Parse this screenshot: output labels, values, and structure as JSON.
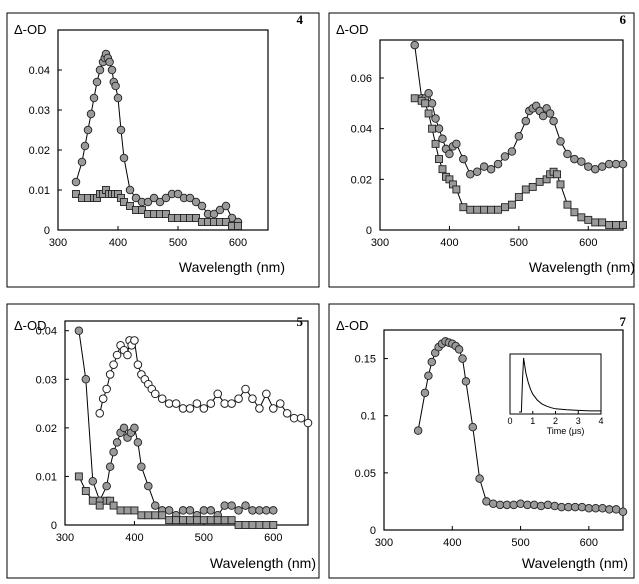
{
  "chart_data": [
    {
      "panel": "4",
      "type": "scatter",
      "ylabel": "Δ-OD",
      "xlabel": "Wavelength (nm)",
      "xlim": [
        300,
        650
      ],
      "ylim": [
        0,
        0.05
      ],
      "xticks": [
        "300",
        "400",
        "500",
        "600"
      ],
      "yticks": [
        "0",
        "0.01",
        "0.02",
        "0.03",
        "0.04"
      ],
      "series": [
        {
          "marker": "circle-gray",
          "x": [
            330,
            340,
            345,
            350,
            355,
            360,
            365,
            370,
            375,
            378,
            380,
            383,
            386,
            390,
            393,
            396,
            400,
            405,
            410,
            420,
            430,
            440,
            450,
            460,
            470,
            480,
            490,
            500,
            510,
            520,
            530,
            540,
            550,
            560,
            570,
            580,
            590,
            600
          ],
          "y": [
            0.012,
            0.017,
            0.021,
            0.025,
            0.029,
            0.033,
            0.037,
            0.04,
            0.042,
            0.043,
            0.044,
            0.043,
            0.042,
            0.04,
            0.037,
            0.036,
            0.033,
            0.025,
            0.018,
            0.01,
            0.008,
            0.007,
            0.007,
            0.008,
            0.007,
            0.008,
            0.009,
            0.009,
            0.008,
            0.008,
            0.007,
            0.006,
            0.004,
            0.004,
            0.005,
            0.006,
            0.003,
            0.002
          ]
        },
        {
          "marker": "square-gray",
          "x": [
            330,
            340,
            350,
            360,
            365,
            370,
            375,
            380,
            385,
            390,
            395,
            400,
            405,
            410,
            420,
            430,
            440,
            450,
            460,
            470,
            480,
            490,
            500,
            510,
            520,
            530,
            540,
            550,
            560,
            570,
            580,
            590,
            600
          ],
          "y": [
            0.009,
            0.008,
            0.008,
            0.008,
            0.008,
            0.009,
            0.009,
            0.01,
            0.009,
            0.009,
            0.009,
            0.009,
            0.008,
            0.007,
            0.006,
            0.005,
            0.005,
            0.004,
            0.004,
            0.004,
            0.004,
            0.003,
            0.003,
            0.003,
            0.003,
            0.003,
            0.002,
            0.002,
            0.002,
            0.002,
            0.002,
            0.001,
            0.001
          ]
        }
      ]
    },
    {
      "panel": "6",
      "type": "scatter",
      "ylabel": "Δ-OD",
      "xlabel": "Wavelength (nm)",
      "xlim": [
        300,
        650
      ],
      "ylim": [
        0,
        0.075
      ],
      "xticks": [
        "300",
        "400",
        "500",
        "600"
      ],
      "yticks": [
        "0",
        "0.02",
        "0.04",
        "0.06"
      ],
      "series": [
        {
          "marker": "circle-gray",
          "x": [
            350,
            360,
            365,
            370,
            375,
            380,
            385,
            390,
            395,
            400,
            405,
            410,
            420,
            430,
            440,
            450,
            460,
            470,
            480,
            490,
            500,
            510,
            515,
            520,
            525,
            530,
            535,
            540,
            545,
            550,
            560,
            570,
            580,
            590,
            600,
            610,
            620,
            630,
            640,
            650
          ],
          "y": [
            0.073,
            0.052,
            0.052,
            0.054,
            0.05,
            0.044,
            0.04,
            0.036,
            0.032,
            0.03,
            0.033,
            0.034,
            0.028,
            0.022,
            0.023,
            0.025,
            0.024,
            0.026,
            0.029,
            0.031,
            0.037,
            0.043,
            0.047,
            0.048,
            0.049,
            0.047,
            0.045,
            0.048,
            0.046,
            0.043,
            0.035,
            0.03,
            0.028,
            0.027,
            0.025,
            0.024,
            0.025,
            0.026,
            0.026,
            0.026
          ]
        },
        {
          "marker": "square-gray",
          "x": [
            350,
            360,
            365,
            370,
            375,
            380,
            385,
            390,
            395,
            400,
            405,
            410,
            420,
            430,
            440,
            450,
            460,
            470,
            480,
            490,
            500,
            510,
            520,
            530,
            540,
            545,
            550,
            555,
            560,
            570,
            580,
            590,
            600,
            610,
            620,
            630,
            640,
            650
          ],
          "y": [
            0.052,
            0.051,
            0.05,
            0.046,
            0.04,
            0.034,
            0.028,
            0.024,
            0.021,
            0.02,
            0.018,
            0.016,
            0.009,
            0.008,
            0.008,
            0.008,
            0.008,
            0.008,
            0.009,
            0.01,
            0.013,
            0.016,
            0.017,
            0.019,
            0.02,
            0.022,
            0.023,
            0.022,
            0.018,
            0.01,
            0.007,
            0.005,
            0.004,
            0.003,
            0.003,
            0.002,
            0.002,
            0.002
          ]
        }
      ]
    },
    {
      "panel": "5",
      "type": "scatter",
      "ylabel": "Δ-OD",
      "xlabel": "Wavelength (nm)",
      "xlim": [
        300,
        650
      ],
      "ylim": [
        0,
        0.042
      ],
      "xticks": [
        "300",
        "400",
        "500",
        "600"
      ],
      "yticks": [
        "0",
        "0.01",
        "0.02",
        "0.03",
        "0.04"
      ],
      "series": [
        {
          "marker": "circle-open",
          "x": [
            350,
            355,
            360,
            365,
            370,
            375,
            380,
            385,
            390,
            393,
            396,
            400,
            405,
            410,
            415,
            420,
            425,
            430,
            440,
            450,
            460,
            470,
            480,
            490,
            500,
            510,
            520,
            530,
            540,
            550,
            560,
            570,
            580,
            590,
            600,
            610,
            620,
            630,
            640,
            650
          ],
          "y": [
            0.023,
            0.026,
            0.028,
            0.031,
            0.033,
            0.035,
            0.037,
            0.036,
            0.035,
            0.038,
            0.037,
            0.038,
            0.033,
            0.031,
            0.03,
            0.029,
            0.028,
            0.027,
            0.026,
            0.025,
            0.025,
            0.024,
            0.024,
            0.025,
            0.024,
            0.025,
            0.027,
            0.025,
            0.025,
            0.026,
            0.028,
            0.026,
            0.024,
            0.027,
            0.024,
            0.025,
            0.023,
            0.022,
            0.022,
            0.021
          ]
        },
        {
          "marker": "circle-gray",
          "x": [
            320,
            330,
            340,
            350,
            360,
            365,
            370,
            375,
            380,
            385,
            390,
            395,
            400,
            405,
            410,
            420,
            430,
            440,
            450,
            460,
            470,
            480,
            490,
            500,
            510,
            520,
            530,
            540,
            550,
            560,
            570,
            580,
            590,
            600
          ],
          "y": [
            0.04,
            0.03,
            0.009,
            0.005,
            0.008,
            0.012,
            0.015,
            0.017,
            0.019,
            0.02,
            0.018,
            0.019,
            0.02,
            0.017,
            0.012,
            0.008,
            0.004,
            0.003,
            0.003,
            0.002,
            0.003,
            0.003,
            0.002,
            0.003,
            0.003,
            0.002,
            0.004,
            0.004,
            0.003,
            0.004,
            0.003,
            0.003,
            0.003,
            0.003
          ]
        },
        {
          "marker": "square-gray",
          "x": [
            320,
            330,
            340,
            350,
            360,
            365,
            370,
            380,
            390,
            400,
            410,
            420,
            430,
            440,
            450,
            460,
            470,
            480,
            490,
            500,
            510,
            520,
            530,
            540,
            550,
            560,
            570,
            580,
            590,
            600
          ],
          "y": [
            0.01,
            0.007,
            0.005,
            0.004,
            0.005,
            0.005,
            0.004,
            0.003,
            0.003,
            0.003,
            0.002,
            0.002,
            0.002,
            0.002,
            0.001,
            0.001,
            0.001,
            0.001,
            0.001,
            0.001,
            0.001,
            0.001,
            0.001,
            0.001,
            0.0,
            0.0,
            0.0,
            0.0,
            0.0,
            0.0
          ]
        }
      ]
    },
    {
      "panel": "7",
      "type": "scatter",
      "ylabel": "Δ-OD",
      "xlabel": "Wavelength (nm)",
      "xlim": [
        300,
        650
      ],
      "ylim": [
        0,
        0.175
      ],
      "xticks": [
        "300",
        "400",
        "500",
        "600"
      ],
      "yticks": [
        "0",
        "0.05",
        "0.1",
        "0.15"
      ],
      "series": [
        {
          "marker": "circle-gray",
          "x": [
            350,
            360,
            365,
            370,
            375,
            380,
            385,
            390,
            395,
            400,
            405,
            410,
            415,
            420,
            430,
            440,
            450,
            460,
            470,
            480,
            490,
            500,
            510,
            520,
            530,
            540,
            550,
            560,
            570,
            580,
            590,
            600,
            610,
            620,
            630,
            640,
            650
          ],
          "y": [
            0.087,
            0.12,
            0.135,
            0.147,
            0.155,
            0.16,
            0.163,
            0.165,
            0.164,
            0.163,
            0.161,
            0.158,
            0.15,
            0.13,
            0.09,
            0.045,
            0.025,
            0.023,
            0.022,
            0.022,
            0.022,
            0.023,
            0.022,
            0.022,
            0.021,
            0.022,
            0.021,
            0.02,
            0.02,
            0.02,
            0.02,
            0.019,
            0.019,
            0.019,
            0.018,
            0.018,
            0.016
          ]
        }
      ],
      "inset": {
        "xlabel": "Time (μs)",
        "xlim": [
          0,
          4
        ],
        "xticks": [
          "0",
          "1",
          "2",
          "3",
          "4"
        ],
        "trace_t": [
          0.4,
          0.5,
          0.55,
          0.6,
          0.65,
          0.7,
          0.8,
          0.9,
          1.0,
          1.2,
          1.4,
          1.6,
          1.8,
          2.0,
          2.5,
          3.0,
          3.5,
          4.0
        ],
        "trace_y": [
          0,
          0,
          0.6,
          1.0,
          0.85,
          0.72,
          0.55,
          0.42,
          0.33,
          0.22,
          0.15,
          0.11,
          0.08,
          0.06,
          0.04,
          0.03,
          0.02,
          0.02
        ]
      }
    }
  ]
}
